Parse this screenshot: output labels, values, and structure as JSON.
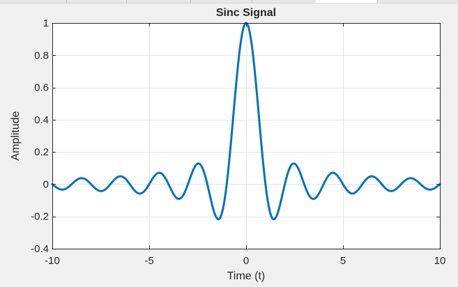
{
  "chart_data": {
    "type": "line",
    "title": "Sinc Signal",
    "xlabel": "Time (t)",
    "ylabel": "Amplitude",
    "xlim": [
      -10,
      10
    ],
    "ylim": [
      -0.4,
      1
    ],
    "xticks": [
      -10,
      -5,
      0,
      5,
      10
    ],
    "xtick_labels": [
      "-10",
      "-5",
      "0",
      "5",
      "10"
    ],
    "yticks": [
      -0.4,
      -0.2,
      0,
      0.2,
      0.4,
      0.6,
      0.8,
      1
    ],
    "ytick_labels": [
      "-0.4",
      "-0.2",
      "0",
      "0.2",
      "0.4",
      "0.6",
      "0.8",
      "1"
    ],
    "grid": true,
    "series": [
      {
        "function": "sin(pi*t)/(pi*t)",
        "color": "#0072BD",
        "x": [
          -10,
          -9.5,
          -9,
          -8.5,
          -8,
          -7.5,
          -7,
          -6.5,
          -6,
          -5.5,
          -5,
          -4.5,
          -4,
          -3.5,
          -3,
          -2.5,
          -2,
          -1.5,
          -1,
          -0.5,
          0,
          0.5,
          1,
          1.5,
          2,
          2.5,
          3,
          3.5,
          4,
          4.5,
          5,
          5.5,
          6,
          6.5,
          7,
          7.5,
          8,
          8.5,
          9,
          9.5,
          10
        ],
        "y": [
          0,
          -0.034,
          0,
          0.037,
          0,
          -0.042,
          0,
          0.049,
          0,
          -0.058,
          0,
          0.071,
          0,
          -0.091,
          0,
          0.127,
          0,
          -0.212,
          0,
          0.637,
          1,
          0.637,
          0,
          -0.212,
          0,
          0.127,
          0,
          -0.091,
          0,
          0.071,
          0,
          -0.058,
          0,
          0.049,
          0,
          -0.042,
          0,
          0.037,
          0,
          -0.034,
          0
        ]
      }
    ]
  }
}
